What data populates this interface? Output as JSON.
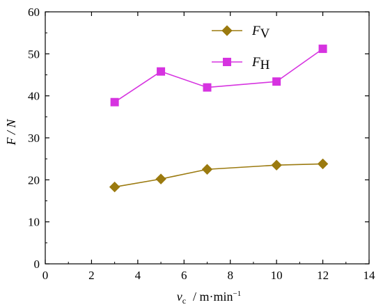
{
  "chart_data": {
    "type": "line",
    "title": "",
    "xlabel": {
      "symbol": "v",
      "subscript": "c",
      "unit": "/ m·min",
      "unit_exponent": "−1"
    },
    "ylabel": "F / N",
    "xlim": [
      0,
      14
    ],
    "ylim": [
      0,
      60
    ],
    "x_ticks": [
      0,
      2,
      4,
      6,
      8,
      10,
      12,
      14
    ],
    "y_ticks": [
      0,
      10,
      20,
      30,
      40,
      50,
      60
    ],
    "grid": false,
    "legend_position": "top-right",
    "series": [
      {
        "name": "F",
        "name_sub": "V",
        "marker": "diamond",
        "color": "#9B7A0F",
        "x": [
          3,
          5,
          7,
          10,
          12
        ],
        "y": [
          18.3,
          20.2,
          22.5,
          23.5,
          23.8
        ]
      },
      {
        "name": "F",
        "name_sub": "H",
        "marker": "square",
        "color": "#D633E0",
        "x": [
          3,
          5,
          7,
          10,
          12
        ],
        "y": [
          38.5,
          45.8,
          42.0,
          43.4,
          51.2
        ]
      }
    ]
  }
}
